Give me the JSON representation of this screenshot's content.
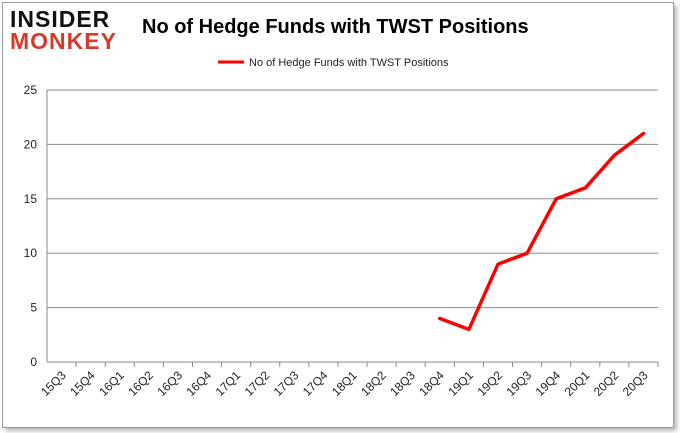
{
  "logo": {
    "line1": "INSIDER",
    "line2": "MONKEY"
  },
  "chart_data": {
    "type": "line",
    "title": "No of Hedge Funds with TWST Positions",
    "xlabel": "",
    "ylabel": "",
    "categories": [
      "15Q3",
      "15Q4",
      "16Q1",
      "16Q2",
      "16Q3",
      "16Q4",
      "17Q1",
      "17Q2",
      "17Q3",
      "17Q4",
      "18Q1",
      "18Q2",
      "18Q3",
      "18Q4",
      "19Q1",
      "19Q2",
      "19Q3",
      "19Q4",
      "20Q1",
      "20Q2",
      "20Q3"
    ],
    "series": [
      {
        "name": "No of Hedge Funds with TWST Positions",
        "color": "#ff0000",
        "values": [
          null,
          null,
          null,
          null,
          null,
          null,
          null,
          null,
          null,
          null,
          null,
          null,
          null,
          4,
          3,
          9,
          10,
          15,
          16,
          19,
          21
        ]
      }
    ],
    "ylim": [
      0,
      25
    ],
    "yticks": [
      0,
      5,
      10,
      15,
      20,
      25
    ],
    "grid": true,
    "legend": "top-center"
  }
}
